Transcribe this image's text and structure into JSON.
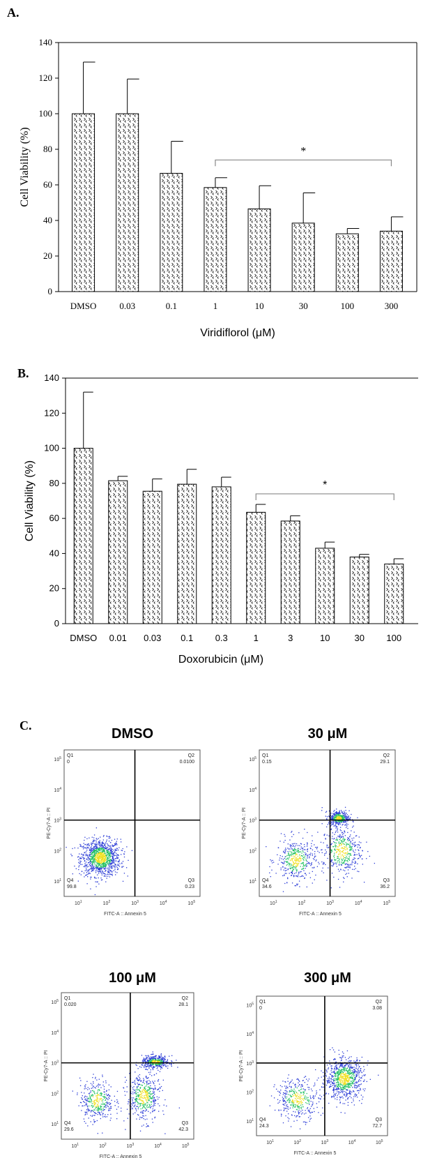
{
  "panels": {
    "a": "A.",
    "b": "B.",
    "c": "C."
  },
  "chart_data": [
    {
      "type": "bar",
      "ylabel": "Cell Viability (%)",
      "xlabel": "Viridiflorol (μM)",
      "ylim": [
        0,
        140
      ],
      "yticks": [
        0,
        20,
        40,
        60,
        80,
        100,
        120,
        140
      ],
      "categories": [
        "DMSO",
        "0.03",
        "0.1",
        "1",
        "10",
        "30",
        "100",
        "300"
      ],
      "values": [
        100,
        100,
        66.5,
        58.5,
        46.5,
        38.5,
        32.5,
        34
      ],
      "errors": [
        29,
        19.5,
        18,
        5.5,
        13,
        17,
        3,
        8
      ],
      "significance": {
        "label": "*",
        "from": "1",
        "to": "300"
      }
    },
    {
      "type": "bar",
      "ylabel": "Cell Viability (%)",
      "xlabel": "Doxorubicin (μM)",
      "ylim": [
        0,
        140
      ],
      "yticks": [
        0,
        20,
        40,
        60,
        80,
        100,
        120,
        140
      ],
      "categories": [
        "DMSO",
        "0.01",
        "0.03",
        "0.1",
        "0.3",
        "1",
        "3",
        "10",
        "30",
        "100"
      ],
      "values": [
        100,
        81.5,
        75.5,
        79.5,
        78,
        63.5,
        58.5,
        43,
        38,
        34
      ],
      "errors": [
        32,
        2.5,
        7,
        8.5,
        5.5,
        4.5,
        3,
        3.5,
        1.5,
        3
      ],
      "significance": {
        "label": "*",
        "from": "1",
        "to": "100"
      }
    },
    {
      "type": "scatter",
      "xlabel": "FITC-A :: Annexin 5",
      "ylabel": "PE-Cy7-A :: PI",
      "xscale": "log",
      "yscale": "log",
      "ticks": [
        "10^1",
        "10^2",
        "10^3",
        "10^4",
        "10^5"
      ],
      "gate": {
        "x": 1000,
        "y": 1000
      },
      "plots": [
        {
          "title": "DMSO",
          "quadrants": {
            "Q1": "0",
            "Q2": "0.0100",
            "Q3": "0.23",
            "Q4": "99.8"
          },
          "clusters": [
            {
              "x": 60,
              "y": 60,
              "sx": 0.35,
              "sy": 0.3,
              "n": 1100
            }
          ]
        },
        {
          "title": "30 μM",
          "quadrants": {
            "Q1": "0.15",
            "Q2": "29.1",
            "Q3": "36.2",
            "Q4": "34.6"
          },
          "clusters": [
            {
              "x": 60,
              "y": 50,
              "sx": 0.35,
              "sy": 0.35,
              "n": 420
            },
            {
              "x": 2000,
              "y": 1200,
              "sx": 0.18,
              "sy": 0.12,
              "n": 380
            },
            {
              "x": 2500,
              "y": 100,
              "sx": 0.35,
              "sy": 0.4,
              "n": 420
            }
          ]
        },
        {
          "title": "100 μM",
          "quadrants": {
            "Q1": "0.020",
            "Q2": "28.1",
            "Q3": "42.3",
            "Q4": "29.6"
          },
          "clusters": [
            {
              "x": 60,
              "y": 60,
              "sx": 0.3,
              "sy": 0.35,
              "n": 360
            },
            {
              "x": 8000,
              "y": 1100,
              "sx": 0.25,
              "sy": 0.1,
              "n": 420
            },
            {
              "x": 3000,
              "y": 80,
              "sx": 0.3,
              "sy": 0.4,
              "n": 460
            }
          ]
        },
        {
          "title": "300 μM",
          "quadrants": {
            "Q1": "0",
            "Q2": "3.08",
            "Q3": "72.7",
            "Q4": "24.3"
          },
          "clusters": [
            {
              "x": 100,
              "y": 60,
              "sx": 0.4,
              "sy": 0.35,
              "n": 380
            },
            {
              "x": 5000,
              "y": 300,
              "sx": 0.35,
              "sy": 0.35,
              "n": 800
            }
          ]
        }
      ]
    }
  ],
  "colors": {
    "bar_fill": "#ffffff",
    "bar_stroke": "#000000",
    "density_low": "#2a3bd6",
    "density_mid": "#20c060",
    "density_high": "#f0e020"
  }
}
